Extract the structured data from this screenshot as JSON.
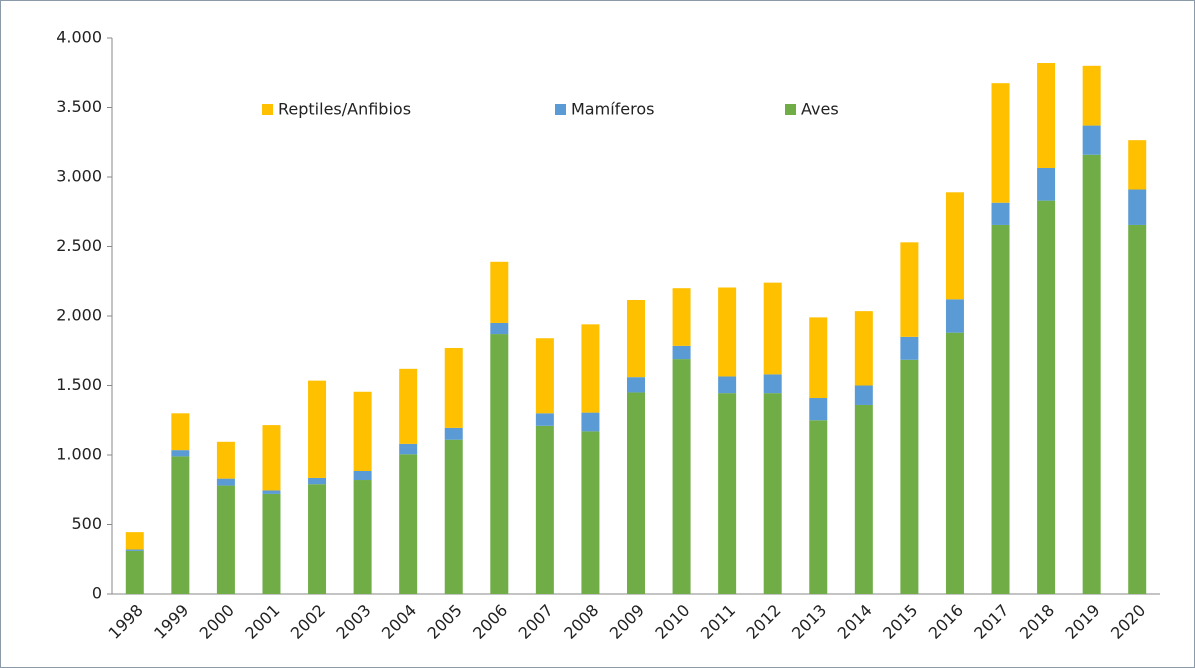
{
  "chart_data": {
    "type": "stacked_bar",
    "categories": [
      "1998",
      "1999",
      "2000",
      "2001",
      "2002",
      "2003",
      "2004",
      "2005",
      "2006",
      "2007",
      "2008",
      "2009",
      "2010",
      "2011",
      "2012",
      "2013",
      "2014",
      "2015",
      "2016",
      "2017",
      "2018",
      "2019",
      "2020"
    ],
    "series": [
      {
        "name": "Reptiles/Anfibios",
        "color": "#ffc000",
        "values": [
          125,
          265,
          265,
          470,
          700,
          570,
          540,
          575,
          440,
          540,
          635,
          555,
          415,
          640,
          660,
          580,
          535,
          680,
          770,
          860,
          755,
          430,
          355
        ]
      },
      {
        "name": "Mamíferos",
        "color": "#5b9bd5",
        "values": [
          10,
          45,
          50,
          25,
          45,
          65,
          75,
          85,
          80,
          90,
          135,
          110,
          95,
          120,
          135,
          160,
          140,
          165,
          240,
          160,
          235,
          210,
          255
        ]
      },
      {
        "name": "Aves",
        "color": "#70ad47",
        "values": [
          310,
          990,
          780,
          720,
          790,
          820,
          1005,
          1110,
          1870,
          1210,
          1170,
          1450,
          1690,
          1445,
          1445,
          1250,
          1360,
          1685,
          1880,
          2655,
          2830,
          3160,
          2655
        ]
      }
    ],
    "ylim": [
      0,
      4000
    ],
    "yticks": [
      0,
      500,
      {
        "value": 1000,
        "label": "1.000"
      },
      {
        "value": 1500,
        "label": "1.500"
      },
      {
        "value": 2000,
        "label": "2.000"
      },
      {
        "value": 2500,
        "label": "2.500"
      },
      {
        "value": 3000,
        "label": "3.000"
      },
      {
        "value": 3500,
        "label": "3.500"
      },
      {
        "value": 4000,
        "label": "4.000"
      }
    ],
    "legend": "top-left"
  }
}
